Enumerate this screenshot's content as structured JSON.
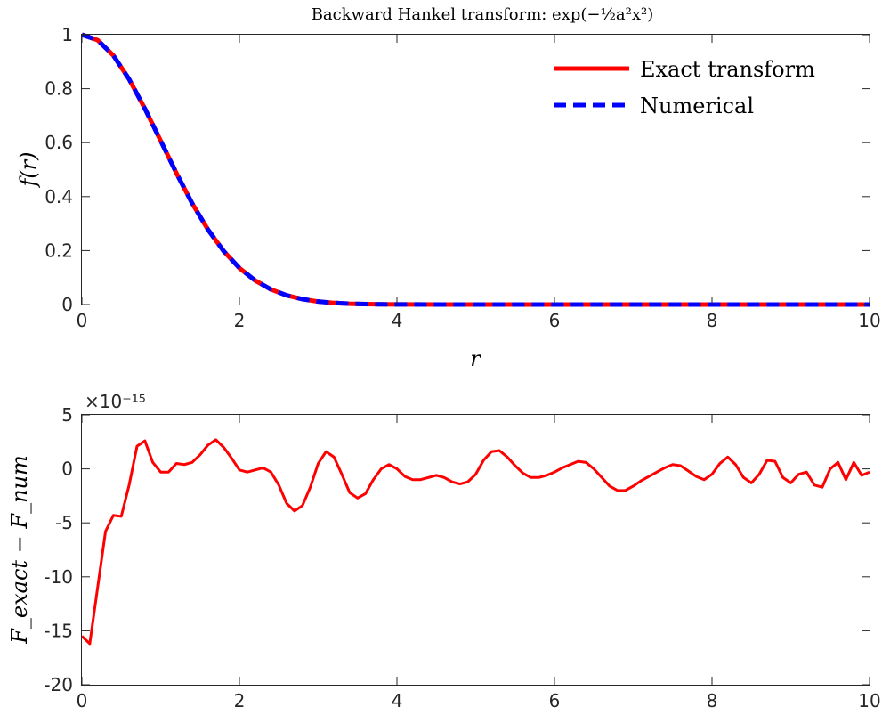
{
  "chart_data": [
    {
      "type": "line",
      "title": "Backward Hankel transform: exp(−½a²x²)",
      "xlabel": "r",
      "ylabel": "f(r)",
      "xlim": [
        0,
        10
      ],
      "ylim": [
        0,
        1
      ],
      "xticks": [
        "0",
        "2",
        "4",
        "6",
        "8",
        "10"
      ],
      "yticks": [
        "0",
        "0.2",
        "0.4",
        "0.6",
        "0.8",
        "1"
      ],
      "grid": false,
      "legend_position": "top-right",
      "series": [
        {
          "name": "Exact transform",
          "color": "#ff0000",
          "style": "solid",
          "x": [
            0,
            0.2,
            0.4,
            0.6,
            0.8,
            1.0,
            1.2,
            1.4,
            1.6,
            1.8,
            2.0,
            2.2,
            2.4,
            2.6,
            2.8,
            3.0,
            3.2,
            3.4,
            3.6,
            3.8,
            4.0,
            5,
            6,
            7,
            8,
            9,
            10
          ],
          "values": [
            1.0,
            0.98,
            0.923,
            0.835,
            0.726,
            0.607,
            0.487,
            0.375,
            0.278,
            0.198,
            0.135,
            0.089,
            0.056,
            0.034,
            0.02,
            0.011,
            0.006,
            0.003,
            0.0015,
            0.0007,
            0.0003,
            0,
            0,
            0,
            0,
            0,
            0
          ]
        },
        {
          "name": "Numerical",
          "color": "#0000ff",
          "style": "dashed",
          "x": [
            0,
            0.2,
            0.4,
            0.6,
            0.8,
            1.0,
            1.2,
            1.4,
            1.6,
            1.8,
            2.0,
            2.2,
            2.4,
            2.6,
            2.8,
            3.0,
            3.2,
            3.4,
            3.6,
            3.8,
            4.0,
            5,
            6,
            7,
            8,
            9,
            10
          ],
          "values": [
            1.0,
            0.98,
            0.923,
            0.835,
            0.726,
            0.607,
            0.487,
            0.375,
            0.278,
            0.198,
            0.135,
            0.089,
            0.056,
            0.034,
            0.02,
            0.011,
            0.006,
            0.003,
            0.0015,
            0.0007,
            0.0003,
            0,
            0,
            0,
            0,
            0,
            0
          ]
        }
      ]
    },
    {
      "type": "line",
      "title": "",
      "xlabel": "",
      "ylabel": "F_exact − F_num",
      "exponent_label": "×10⁻¹⁵",
      "xlim": [
        0,
        10
      ],
      "ylim": [
        -20,
        5
      ],
      "xticks": [
        "0",
        "2",
        "4",
        "6",
        "8",
        "10"
      ],
      "yticks": [
        "-20",
        "-15",
        "-10",
        "-5",
        "0",
        "5"
      ],
      "grid": false,
      "series": [
        {
          "color": "#ff0000",
          "style": "solid",
          "x": [
            0.0,
            0.1,
            0.2,
            0.3,
            0.4,
            0.5,
            0.6,
            0.7,
            0.8,
            0.9,
            1.0,
            1.1,
            1.2,
            1.3,
            1.4,
            1.5,
            1.6,
            1.7,
            1.8,
            1.9,
            2.0,
            2.1,
            2.2,
            2.3,
            2.4,
            2.5,
            2.6,
            2.7,
            2.8,
            2.9,
            3.0,
            3.1,
            3.2,
            3.3,
            3.4,
            3.5,
            3.6,
            3.7,
            3.8,
            3.9,
            4.0,
            4.1,
            4.2,
            4.3,
            4.4,
            4.5,
            4.6,
            4.7,
            4.8,
            4.9,
            5.0,
            5.1,
            5.2,
            5.3,
            5.4,
            5.5,
            5.6,
            5.7,
            5.8,
            5.9,
            6.0,
            6.1,
            6.2,
            6.3,
            6.4,
            6.5,
            6.6,
            6.7,
            6.8,
            6.9,
            7.0,
            7.1,
            7.2,
            7.3,
            7.4,
            7.5,
            7.6,
            7.7,
            7.8,
            7.9,
            8.0,
            8.1,
            8.2,
            8.3,
            8.4,
            8.5,
            8.6,
            8.7,
            8.8,
            8.9,
            9.0,
            9.1,
            9.2,
            9.3,
            9.4,
            9.5,
            9.6,
            9.7,
            9.8,
            9.9,
            10.0
          ],
          "values": [
            -15.5,
            -16.2,
            -11.0,
            -5.8,
            -4.3,
            -4.4,
            -1.5,
            2.1,
            2.6,
            0.6,
            -0.3,
            -0.3,
            0.5,
            0.4,
            0.6,
            1.3,
            2.2,
            2.7,
            2.0,
            1.0,
            -0.1,
            -0.3,
            -0.1,
            0.1,
            -0.3,
            -1.5,
            -3.2,
            -3.9,
            -3.4,
            -1.7,
            0.5,
            1.6,
            1.1,
            -0.5,
            -2.2,
            -2.7,
            -2.3,
            -1.0,
            0.0,
            0.4,
            0.0,
            -0.7,
            -1.0,
            -1.0,
            -0.8,
            -0.6,
            -0.8,
            -1.2,
            -1.4,
            -1.2,
            -0.5,
            0.8,
            1.6,
            1.7,
            1.1,
            0.3,
            -0.4,
            -0.8,
            -0.8,
            -0.6,
            -0.3,
            0.1,
            0.4,
            0.7,
            0.6,
            0.0,
            -0.8,
            -1.6,
            -2.0,
            -2.0,
            -1.6,
            -1.1,
            -0.7,
            -0.3,
            0.1,
            0.4,
            0.3,
            -0.2,
            -0.7,
            -1.0,
            -0.5,
            0.5,
            1.1,
            0.4,
            -0.8,
            -1.3,
            -0.5,
            0.8,
            0.7,
            -0.8,
            -1.3,
            -0.5,
            -0.3,
            -1.5,
            -1.7,
            0.0,
            0.6,
            -1.0,
            0.6,
            -0.6,
            -0.3
          ]
        }
      ]
    }
  ]
}
